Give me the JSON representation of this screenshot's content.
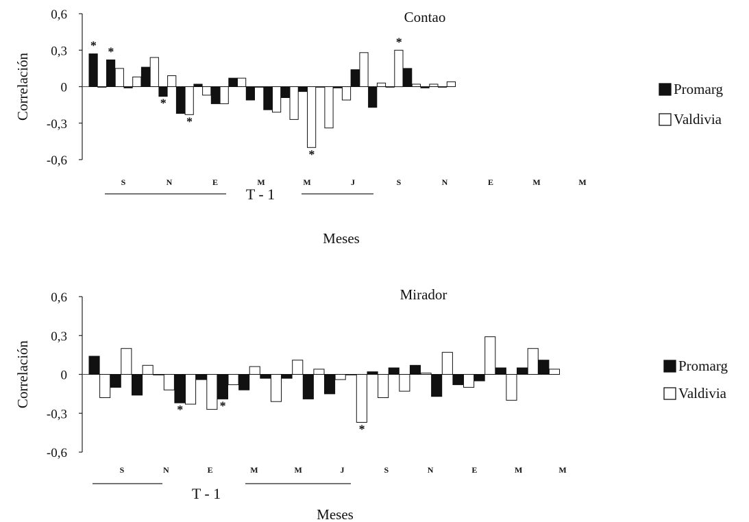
{
  "chart_data": [
    {
      "type": "bar",
      "title": "Contao",
      "xlabel": "Meses",
      "ylabel": "Correlación",
      "ylim": [
        -0.6,
        0.6
      ],
      "yticks": [
        "0,6",
        "0,3",
        "0",
        "-0,3",
        "-0,6"
      ],
      "month_labels": [
        "S",
        "N",
        "E",
        "M",
        "M",
        "J",
        "S",
        "N",
        "E",
        "M",
        "M"
      ],
      "period_label": "T - 1",
      "legend": {
        "position": "right",
        "entries": [
          "Promarg",
          "Valdivia"
        ]
      },
      "series": [
        {
          "name": "Promarg",
          "color": "#111111",
          "values": [
            0.27,
            0.22,
            -0.01,
            0.16,
            -0.08,
            -0.22,
            0.02,
            -0.14,
            0.07,
            -0.11,
            -0.19,
            -0.09,
            -0.04,
            0.0,
            -0.01,
            0.14,
            -0.17,
            0.0,
            0.15,
            -0.01,
            0.0
          ]
        },
        {
          "name": "Valdivia",
          "color": "#ffffff",
          "values": [
            0.0,
            0.15,
            0.08,
            0.24,
            0.09,
            -0.23,
            -0.07,
            -0.14,
            0.07,
            0.0,
            -0.21,
            -0.27,
            -0.5,
            -0.34,
            -0.11,
            0.28,
            0.03,
            0.3,
            0.02,
            0.02,
            0.04
          ]
        }
      ],
      "significant": [
        {
          "series": "Promarg",
          "index": 0
        },
        {
          "series": "Promarg",
          "index": 1
        },
        {
          "series": "Promarg",
          "index": 4
        },
        {
          "series": "Valdivia",
          "index": 5
        },
        {
          "series": "Valdivia",
          "index": 12
        },
        {
          "series": "Valdivia",
          "index": 17
        }
      ]
    },
    {
      "type": "bar",
      "title": "Mirador",
      "xlabel": "Meses",
      "ylabel": "Correlación",
      "ylim": [
        -0.6,
        0.6
      ],
      "yticks": [
        "0,6",
        "0,3",
        "0",
        "-0,3",
        "-0,6"
      ],
      "month_labels": [
        "S",
        "N",
        "E",
        "M",
        "M",
        "J",
        "S",
        "N",
        "E",
        "M",
        "M"
      ],
      "period_label": "T - 1",
      "legend": {
        "position": "right",
        "entries": [
          "Promarg",
          "Valdivia"
        ]
      },
      "series": [
        {
          "name": "Promarg",
          "color": "#111111",
          "values": [
            0.14,
            -0.1,
            -0.16,
            0.0,
            -0.22,
            -0.04,
            -0.19,
            -0.12,
            -0.03,
            -0.03,
            -0.19,
            -0.15,
            0.0,
            0.02,
            0.05,
            0.07,
            -0.17,
            -0.08,
            -0.05,
            0.05,
            0.05,
            0.11
          ]
        },
        {
          "name": "Valdivia",
          "color": "#ffffff",
          "values": [
            -0.18,
            0.2,
            0.07,
            -0.12,
            -0.23,
            -0.27,
            -0.08,
            0.06,
            -0.21,
            0.11,
            0.04,
            -0.04,
            -0.37,
            -0.18,
            -0.13,
            0.01,
            0.17,
            -0.1,
            0.29,
            -0.2,
            0.2,
            0.04
          ]
        }
      ],
      "significant": [
        {
          "series": "Promarg",
          "index": 4
        },
        {
          "series": "Promarg",
          "index": 6
        },
        {
          "series": "Valdivia",
          "index": 12
        }
      ]
    }
  ]
}
